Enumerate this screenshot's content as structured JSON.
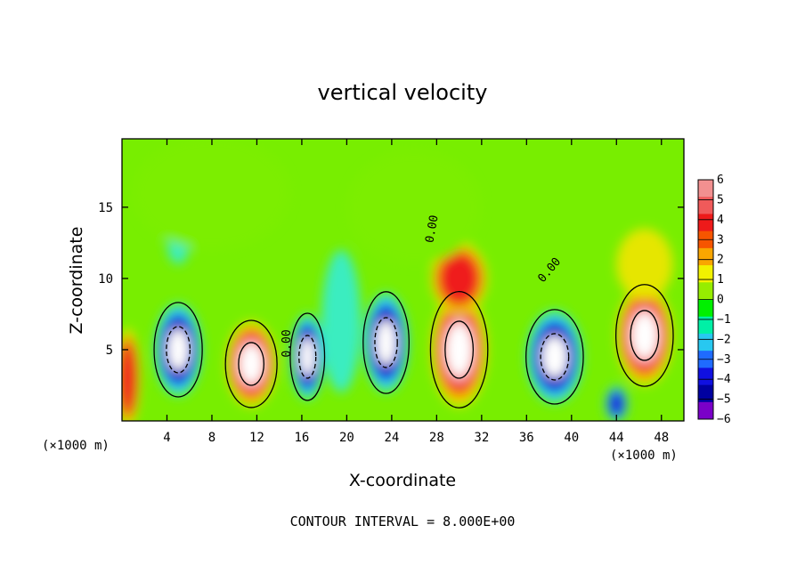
{
  "chart_data": {
    "type": "heatmap",
    "title": "vertical velocity",
    "xlabel": "X-coordinate",
    "ylabel": "Z-coordinate",
    "x_unit": "(×1000 m)",
    "x_ticks": [
      4,
      8,
      12,
      16,
      20,
      24,
      28,
      32,
      36,
      40,
      44,
      48
    ],
    "y_ticks": [
      5,
      10,
      15
    ],
    "xlim": [
      0,
      50
    ],
    "ylim": [
      0,
      19.8
    ],
    "colorbar": {
      "ticks": [
        6,
        5,
        4,
        3,
        2,
        1,
        0,
        -1,
        -2,
        -3,
        -4,
        -5,
        -6
      ],
      "labels": [
        "6",
        "5",
        "4",
        "3",
        "2",
        "1",
        "0",
        "−1",
        "−2",
        "−3",
        "−4",
        "−5",
        "−6"
      ],
      "colors": [
        "#f29090",
        "#f05a5a",
        "#ee1a1a",
        "#f65500",
        "#f9a600",
        "#f2f200",
        "#96ed00",
        "#00f000",
        "#00f0a6",
        "#28c8f0",
        "#1f6bff",
        "#1010e0",
        "#0000a0",
        "#7a00c8"
      ]
    },
    "contour_label": "0.00",
    "annotation": "CONTOUR INTERVAL = 8.000E+00",
    "cells": [
      {
        "x": 0.5,
        "z": 3.0,
        "w": 2.2,
        "h": 7.0,
        "v": 2.5
      },
      {
        "x": 5.0,
        "z": 5.0,
        "w": 4.2,
        "h": 6.5,
        "v": -10
      },
      {
        "x": 5.0,
        "z": 12.5,
        "w": 2.0,
        "h": 3.0,
        "v": -1.5
      },
      {
        "x": 11.5,
        "z": 4.0,
        "w": 4.5,
        "h": 6.0,
        "v": 10
      },
      {
        "x": 16.5,
        "z": 4.5,
        "w": 3.0,
        "h": 6.0,
        "v": -9
      },
      {
        "x": 19.5,
        "z": 7.0,
        "w": 3.5,
        "h": 10.0,
        "v": -1.2
      },
      {
        "x": 23.5,
        "z": 5.5,
        "w": 4.0,
        "h": 7.0,
        "v": -10
      },
      {
        "x": 30.0,
        "z": 5.0,
        "w": 5.0,
        "h": 8.0,
        "v": 10
      },
      {
        "x": 30.0,
        "z": 10.0,
        "w": 5.0,
        "h": 5.0,
        "v": 2.0
      },
      {
        "x": 38.5,
        "z": 4.5,
        "w": 5.0,
        "h": 6.5,
        "v": -10
      },
      {
        "x": 46.5,
        "z": 6.0,
        "w": 5.0,
        "h": 7.0,
        "v": 10
      },
      {
        "x": 46.5,
        "z": 11.0,
        "w": 5.0,
        "h": 5.0,
        "v": 1.5
      },
      {
        "x": 44.0,
        "z": 1.2,
        "w": 2.0,
        "h": 2.5,
        "v": -3
      },
      {
        "x": 26.0,
        "z": 15.0,
        "w": 12.0,
        "h": 8.0,
        "v": -0.6
      },
      {
        "x": 8.0,
        "z": 16.0,
        "w": 14.0,
        "h": 8.0,
        "v": -0.4
      }
    ]
  }
}
